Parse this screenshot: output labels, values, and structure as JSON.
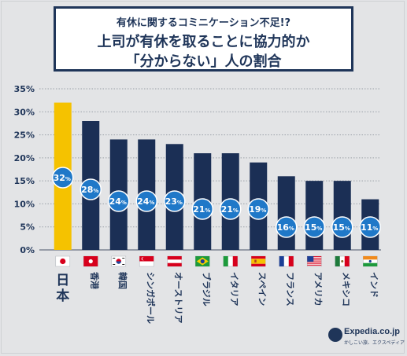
{
  "header": {
    "subtitle": "有休に関するコミニケーション不足!?",
    "title_line1": "上司が有休を取ることに協力的か",
    "title_line2": "「分からない」人の割合"
  },
  "chart_data": {
    "type": "bar",
    "categories": [
      "日本",
      "香港",
      "韓国",
      "シンガポール",
      "オーストリア",
      "ブラジル",
      "イタリア",
      "スペイン",
      "フランス",
      "アメリカ",
      "メキシコ",
      "インド"
    ],
    "values": [
      32,
      28,
      24,
      24,
      23,
      21,
      21,
      19,
      16,
      15,
      15,
      11
    ],
    "value_labels": [
      "32",
      "28",
      "24",
      "24",
      "23",
      "21",
      "21",
      "19",
      "16",
      "15",
      "15",
      "11"
    ],
    "value_suffix": "%",
    "y_ticks": [
      "0%",
      "5%",
      "10%",
      "15%",
      "20%",
      "25%",
      "30%",
      "35%"
    ],
    "ylim": [
      0,
      35
    ],
    "title": "上司が有休を取ることに協力的か「分からない」人の割合",
    "xlabel": "",
    "ylabel": "",
    "grid": true,
    "colors": {
      "highlight": "#f5c200",
      "bar": "#1b2f55",
      "badge": "#1f78c8",
      "grid": "#9aa0a8",
      "text": "#1f3559"
    },
    "flags": [
      "japan-flag-icon",
      "hongkong-flag-icon",
      "korea-flag-icon",
      "singapore-flag-icon",
      "austria-flag-icon",
      "brazil-flag-icon",
      "italy-flag-icon",
      "spain-flag-icon",
      "france-flag-icon",
      "usa-flag-icon",
      "mexico-flag-icon",
      "india-flag-icon"
    ]
  },
  "logo": {
    "text": "Expedia.co.jp",
    "sub": "かしこい旅、エクスペディア"
  }
}
